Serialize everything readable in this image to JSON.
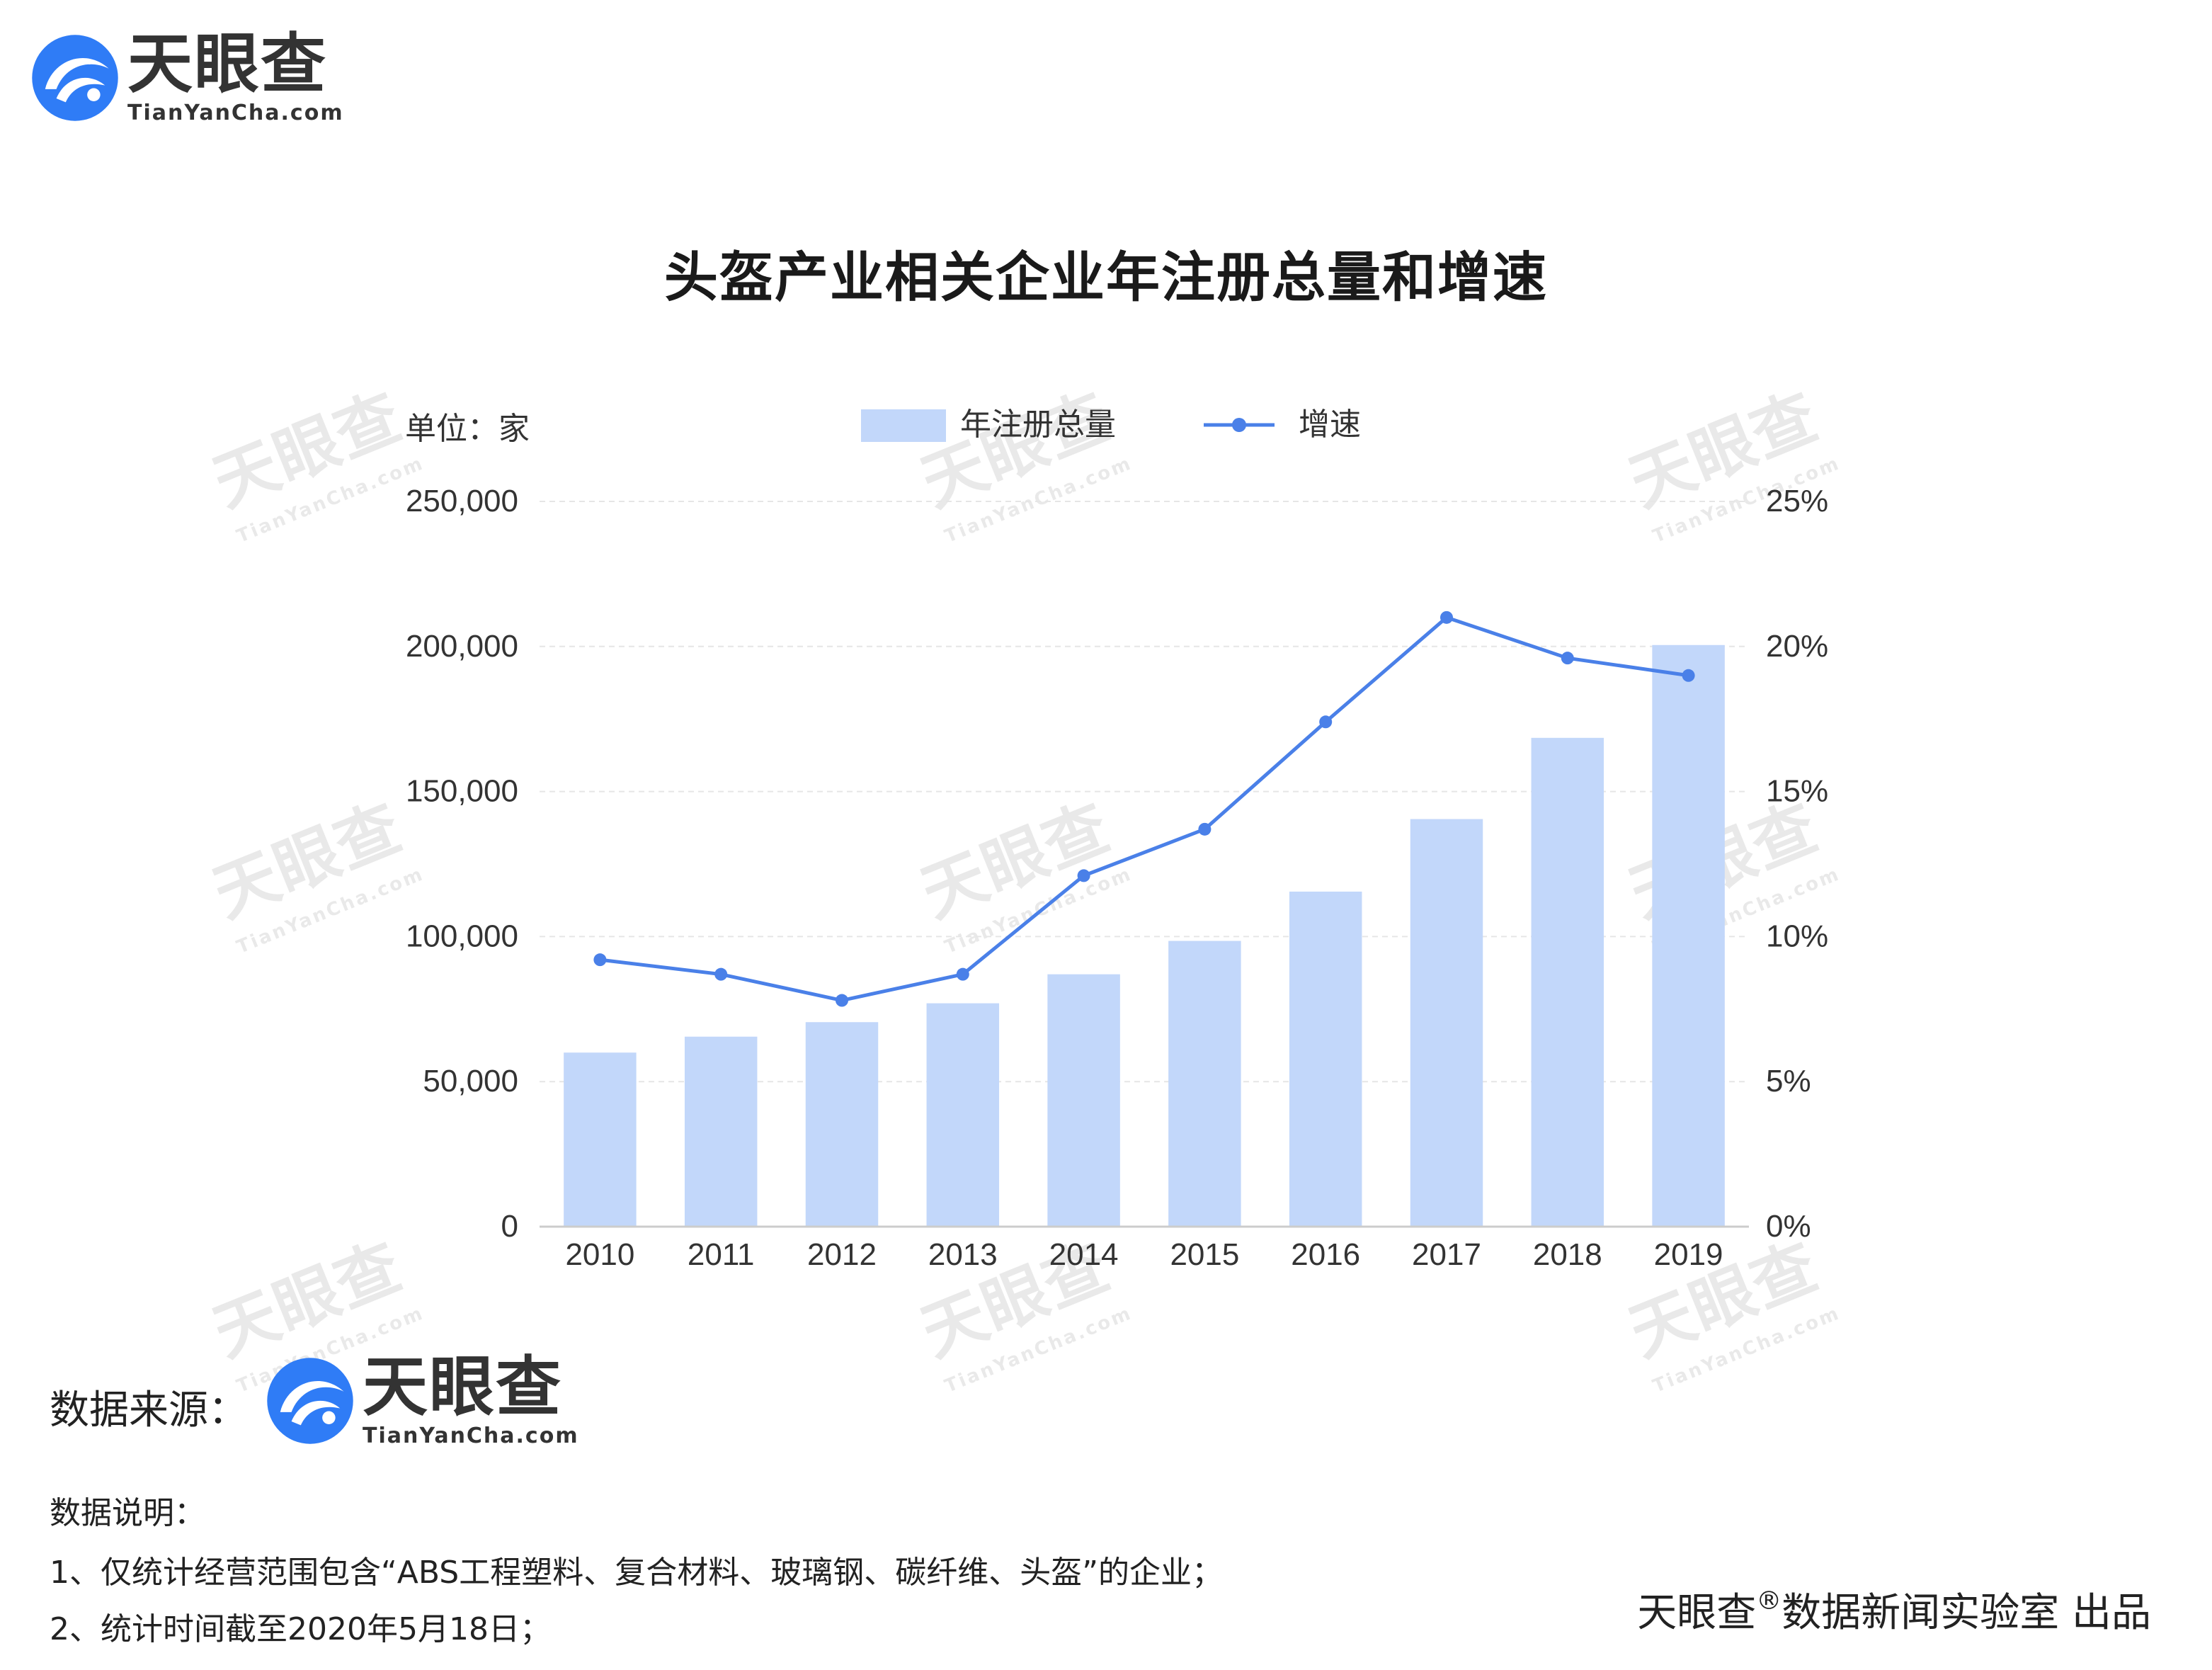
{
  "brand": {
    "name_cn": "天眼查",
    "name_en": "TianYanCha.com"
  },
  "colors": {
    "bar": "#c2d7fa",
    "line": "#4a80e8",
    "grid": "#e6e6e6",
    "logo_blue": "#2f7cf6"
  },
  "chart_data": {
    "type": "bar",
    "title": "头盔产业相关企业年注册总量和增速",
    "unit_label": "单位：家",
    "categories": [
      "2010",
      "2011",
      "2012",
      "2013",
      "2014",
      "2015",
      "2016",
      "2017",
      "2018",
      "2019"
    ],
    "series": [
      {
        "name": "年注册总量",
        "type": "bar",
        "axis": "left",
        "values": [
          60000,
          65500,
          70500,
          77000,
          87000,
          98500,
          115500,
          140500,
          168500,
          200500
        ]
      },
      {
        "name": "增速",
        "type": "line",
        "axis": "right",
        "values": [
          9.2,
          8.7,
          7.8,
          8.7,
          12.1,
          13.7,
          17.4,
          21.0,
          19.6,
          19.0
        ]
      }
    ],
    "y_left": {
      "ylim": [
        0,
        250000
      ],
      "ticks": [
        0,
        50000,
        100000,
        150000,
        200000,
        250000
      ],
      "tick_labels": [
        "0",
        "50,000",
        "100,000",
        "150,000",
        "200,000",
        "250,000"
      ]
    },
    "y_right": {
      "ylim": [
        0,
        25
      ],
      "ticks": [
        0,
        5,
        10,
        15,
        20,
        25
      ],
      "tick_labels": [
        "0%",
        "5%",
        "10%",
        "15%",
        "20%",
        "25%"
      ]
    },
    "grid": true,
    "legend_position": "top-center"
  },
  "source": {
    "label": "数据来源："
  },
  "notes": {
    "title": "数据说明：",
    "items": [
      "1、仅统计经营范围包含“ABS工程塑料、复合材料、玻璃钢、碳纤维、头盔”的企业；",
      "2、统计时间截至2020年5月18日；"
    ]
  },
  "credit": {
    "brand": "天眼查",
    "mark": "®",
    "text": "数据新闻实验室 出品"
  }
}
